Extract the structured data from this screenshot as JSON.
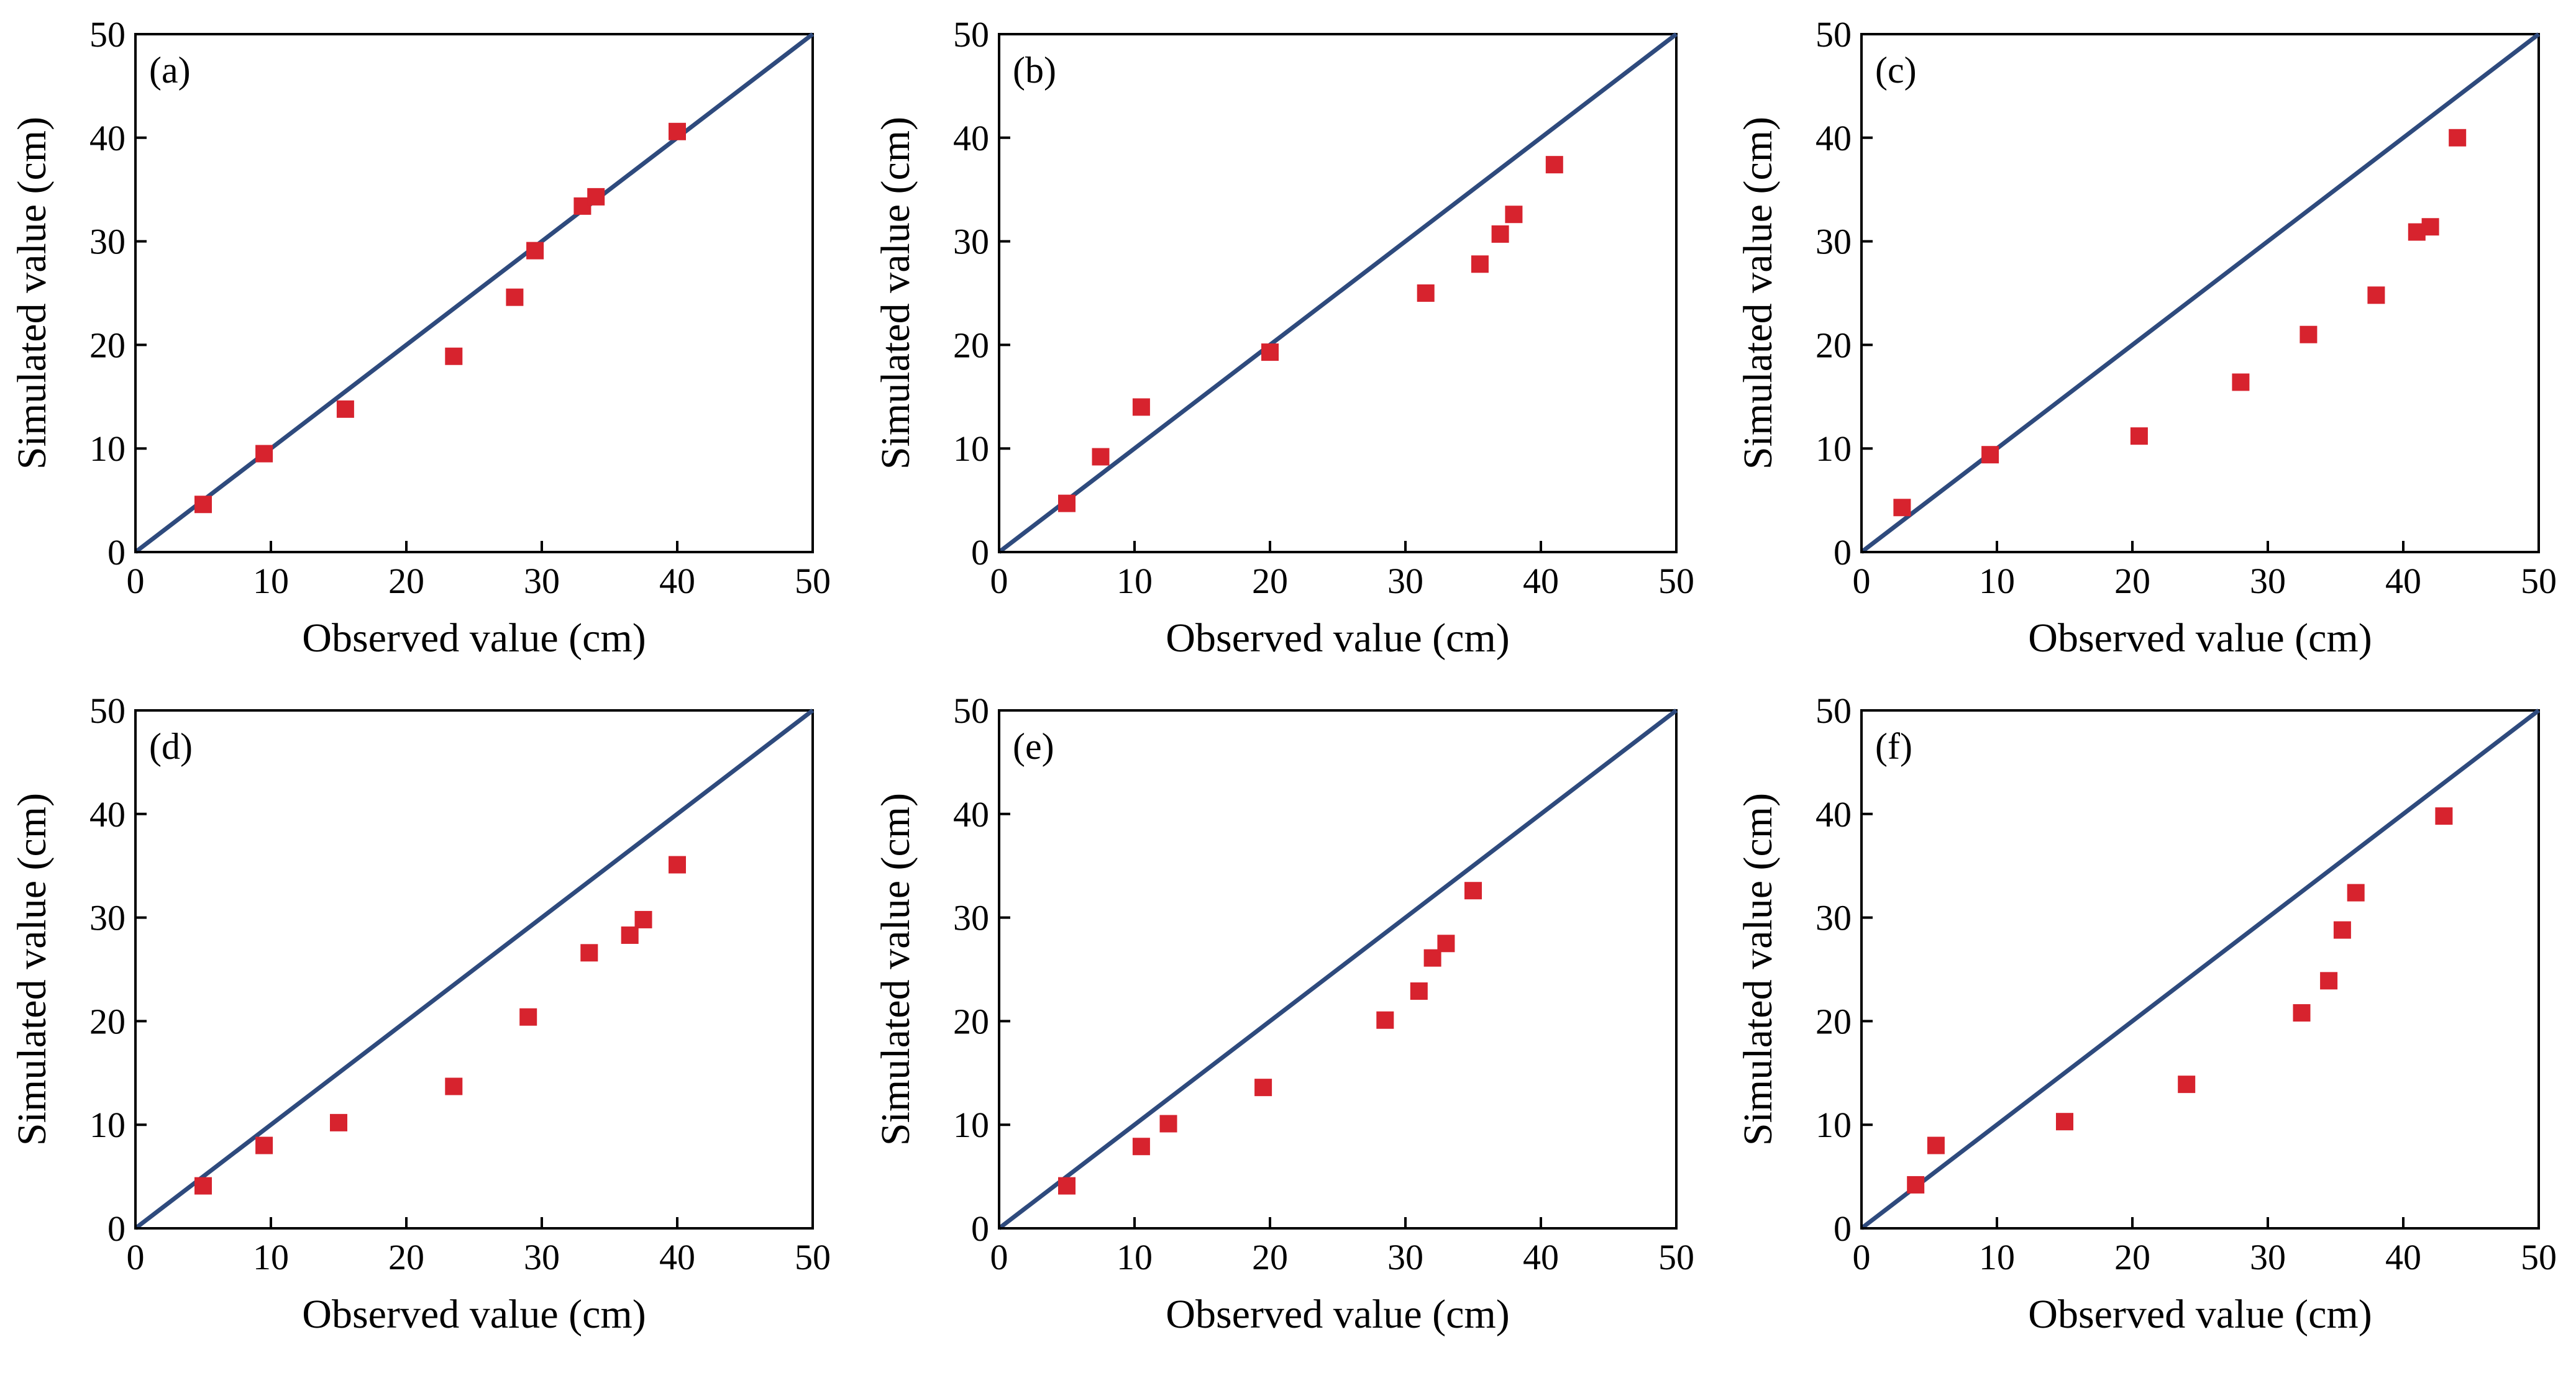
{
  "figure": {
    "marker_color": "#D7232E",
    "line_color": "#2E4A7D",
    "axis_color": "#000000"
  },
  "chart_data": [
    {
      "type": "scatter",
      "panel": "(a)",
      "xlabel": "Observed value (cm)",
      "ylabel": "Simulated value (cm)",
      "xlim": [
        0,
        50
      ],
      "ylim": [
        0,
        50
      ],
      "xticks": [
        "0",
        "10",
        "20",
        "30",
        "40",
        "50"
      ],
      "yticks": [
        "0",
        "10",
        "20",
        "30",
        "40",
        "50"
      ],
      "reference_line": "1:1",
      "points": [
        {
          "x": 5,
          "y": 4.6
        },
        {
          "x": 9.5,
          "y": 9.5
        },
        {
          "x": 15.5,
          "y": 13.8
        },
        {
          "x": 23.5,
          "y": 18.9
        },
        {
          "x": 28,
          "y": 24.6
        },
        {
          "x": 29.5,
          "y": 29.1
        },
        {
          "x": 33,
          "y": 33.4
        },
        {
          "x": 34,
          "y": 34.3
        },
        {
          "x": 40,
          "y": 40.6
        }
      ]
    },
    {
      "type": "scatter",
      "panel": "(b)",
      "xlabel": "Observed value (cm)",
      "ylabel": "Simulated value (cm)",
      "xlim": [
        0,
        50
      ],
      "ylim": [
        0,
        50
      ],
      "xticks": [
        "0",
        "10",
        "20",
        "30",
        "40",
        "50"
      ],
      "yticks": [
        "0",
        "10",
        "20",
        "30",
        "40",
        "50"
      ],
      "reference_line": "1:1",
      "points": [
        {
          "x": 5,
          "y": 4.7
        },
        {
          "x": 7.5,
          "y": 9.2
        },
        {
          "x": 10.5,
          "y": 14
        },
        {
          "x": 20,
          "y": 19.3
        },
        {
          "x": 31.5,
          "y": 25
        },
        {
          "x": 35.5,
          "y": 27.8
        },
        {
          "x": 37,
          "y": 30.7
        },
        {
          "x": 38,
          "y": 32.6
        },
        {
          "x": 41,
          "y": 37.4
        }
      ]
    },
    {
      "type": "scatter",
      "panel": "(c)",
      "xlabel": "Observed value (cm)",
      "ylabel": "Simulated value (cm)",
      "xlim": [
        0,
        50
      ],
      "ylim": [
        0,
        50
      ],
      "xticks": [
        "0",
        "10",
        "20",
        "30",
        "40",
        "50"
      ],
      "yticks": [
        "0",
        "10",
        "20",
        "30",
        "40",
        "50"
      ],
      "reference_line": "1:1",
      "points": [
        {
          "x": 3,
          "y": 4.3
        },
        {
          "x": 9.5,
          "y": 9.4
        },
        {
          "x": 20.5,
          "y": 11.2
        },
        {
          "x": 28,
          "y": 16.4
        },
        {
          "x": 33,
          "y": 21
        },
        {
          "x": 38,
          "y": 24.8
        },
        {
          "x": 41,
          "y": 30.9
        },
        {
          "x": 42,
          "y": 31.4
        },
        {
          "x": 44,
          "y": 40
        }
      ]
    },
    {
      "type": "scatter",
      "panel": "(d)",
      "xlabel": "Observed value (cm)",
      "ylabel": "Simulated value (cm)",
      "xlim": [
        0,
        50
      ],
      "ylim": [
        0,
        50
      ],
      "xticks": [
        "0",
        "10",
        "20",
        "30",
        "40",
        "50"
      ],
      "yticks": [
        "0",
        "10",
        "20",
        "30",
        "40",
        "50"
      ],
      "reference_line": "1:1",
      "points": [
        {
          "x": 5,
          "y": 4.1
        },
        {
          "x": 9.5,
          "y": 8
        },
        {
          "x": 15,
          "y": 10.2
        },
        {
          "x": 23.5,
          "y": 13.7
        },
        {
          "x": 29,
          "y": 20.4
        },
        {
          "x": 33.5,
          "y": 26.6
        },
        {
          "x": 36.5,
          "y": 28.3
        },
        {
          "x": 37.5,
          "y": 29.8
        },
        {
          "x": 40,
          "y": 35.1
        }
      ]
    },
    {
      "type": "scatter",
      "panel": "(e)",
      "xlabel": "Observed value (cm)",
      "ylabel": "Simulated value (cm)",
      "xlim": [
        0,
        50
      ],
      "ylim": [
        0,
        50
      ],
      "xticks": [
        "0",
        "10",
        "20",
        "30",
        "40",
        "50"
      ],
      "yticks": [
        "0",
        "10",
        "20",
        "30",
        "40",
        "50"
      ],
      "reference_line": "1:1",
      "points": [
        {
          "x": 5,
          "y": 4.1
        },
        {
          "x": 10.5,
          "y": 7.9
        },
        {
          "x": 12.5,
          "y": 10.1
        },
        {
          "x": 19.5,
          "y": 13.6
        },
        {
          "x": 28.5,
          "y": 20.1
        },
        {
          "x": 31,
          "y": 22.9
        },
        {
          "x": 32,
          "y": 26.1
        },
        {
          "x": 33,
          "y": 27.5
        },
        {
          "x": 35,
          "y": 32.6
        }
      ]
    },
    {
      "type": "scatter",
      "panel": "(f)",
      "xlabel": "Observed value (cm)",
      "ylabel": "Simulated value (cm)",
      "xlim": [
        0,
        50
      ],
      "ylim": [
        0,
        50
      ],
      "xticks": [
        "0",
        "10",
        "20",
        "30",
        "40",
        "50"
      ],
      "yticks": [
        "0",
        "10",
        "20",
        "30",
        "40",
        "50"
      ],
      "reference_line": "1:1",
      "points": [
        {
          "x": 4,
          "y": 4.2
        },
        {
          "x": 5.5,
          "y": 8
        },
        {
          "x": 15,
          "y": 10.3
        },
        {
          "x": 24,
          "y": 13.9
        },
        {
          "x": 32.5,
          "y": 20.8
        },
        {
          "x": 34.5,
          "y": 23.9
        },
        {
          "x": 35.5,
          "y": 28.8
        },
        {
          "x": 36.5,
          "y": 32.4
        },
        {
          "x": 43,
          "y": 39.8
        }
      ]
    }
  ]
}
